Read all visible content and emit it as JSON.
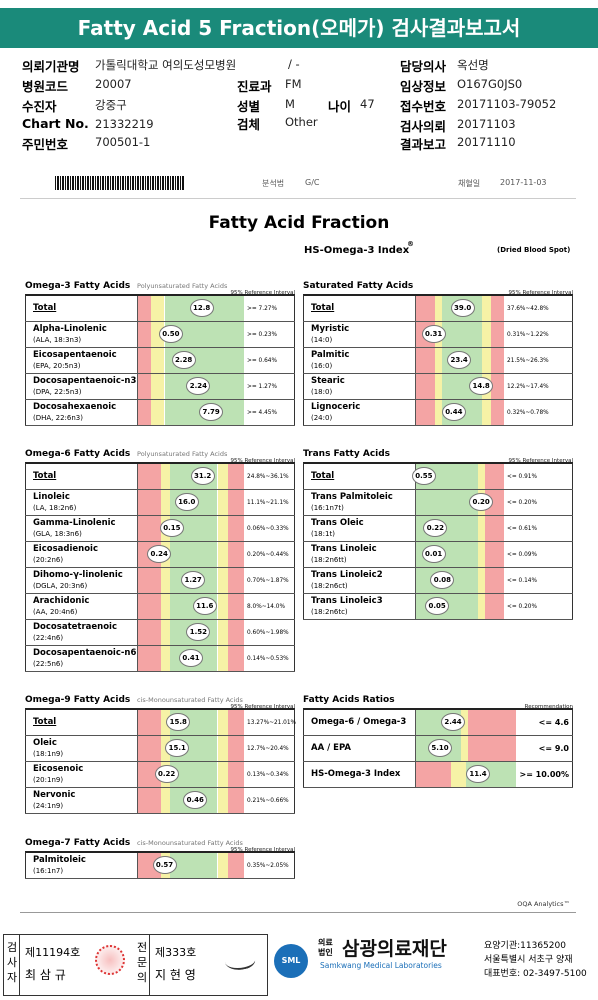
{
  "header": {
    "title": "Fatty Acid 5 Fraction(오메가) 검사결과보고서"
  },
  "patient": [
    {
      "label": "의뢰기관명",
      "value": "가톨릭대학교 여의도성모병원"
    },
    {
      "value": "/ -"
    },
    {
      "label": "담당의사",
      "value": "옥선명"
    },
    {
      "label": "병원코드",
      "value": "20007"
    },
    {
      "label": "진료과",
      "value": "FM"
    },
    {
      "label": "임상정보",
      "value": "O167G0JS0"
    },
    {
      "label": "수진자",
      "value": "강중구"
    },
    {
      "label": "성별",
      "value": "M"
    },
    {
      "label": "나이",
      "value": "47"
    },
    {
      "label": "접수번호",
      "value": "20171103-79052"
    },
    {
      "label": "Chart No.",
      "value": "21332219"
    },
    {
      "label": "검체",
      "value": "Other"
    },
    {
      "label": "검사의뢰",
      "value": "20171103"
    },
    {
      "label": "주민번호",
      "value": "700501-1"
    },
    {
      "label": "결과보고",
      "value": "20171110"
    }
  ],
  "strip": [
    {
      "label": "분석법",
      "value": "G/C"
    },
    {
      "label": "채혈일",
      "value": "2017-11-03"
    }
  ],
  "report": {
    "title": "Fatty Acid Fraction",
    "index_title": "HS-Omega-3 Index",
    "index_mark": "®",
    "specimen": "(Dried Blood Spot)",
    "sections": [
      {
        "name": "Omega-3 Fatty Acids",
        "subtitle": "Polyunsaturated Fatty Acids",
        "ref_header": "95% Reference Interval",
        "rows": [
          {
            "name": "Total",
            "value": "12.8",
            "ref": ">= 7.27%"
          },
          {
            "name": "Alpha-Linolenic",
            "sub": "(ALA, 18:3n3)",
            "value": "0.50",
            "ref": ">= 0.23%"
          },
          {
            "name": "Eicosapentaenoic",
            "sub": "(EPA, 20:5n3)",
            "value": "2.28",
            "ref": ">= 0.64%"
          },
          {
            "name": "Docosapentaenoic-n3",
            "sub": "(DPA, 22:5n3)",
            "value": "2.24",
            "ref": ">= 1.27%"
          },
          {
            "name": "Docosahexaenoic",
            "sub": "(DHA, 22:6n3)",
            "value": "7.79",
            "ref": ">= 4.45%"
          }
        ]
      },
      {
        "name": "Saturated Fatty Acids",
        "ref_header": "95% Reference Interval",
        "rows": [
          {
            "name": "Total",
            "value": "39.0",
            "ref": "37.6%~42.8%"
          },
          {
            "name": "Myristic",
            "sub": "(14:0)",
            "value": "0.31",
            "ref": "0.31%~1.22%"
          },
          {
            "name": "Palmitic",
            "sub": "(16:0)",
            "value": "23.4",
            "ref": "21.5%~26.3%"
          },
          {
            "name": "Stearic",
            "sub": "(18:0)",
            "value": "14.8",
            "ref": "12.2%~17.4%"
          },
          {
            "name": "Lignoceric",
            "sub": "(24:0)",
            "value": "0.44",
            "ref": "0.32%~0.78%"
          }
        ]
      },
      {
        "name": "Omega-6 Fatty Acids",
        "subtitle": "Polyunsaturated Fatty Acids",
        "ref_header": "95% Reference Interval",
        "rows": [
          {
            "name": "Total",
            "value": "31.2",
            "ref": "24.8%~36.1%"
          },
          {
            "name": "Linoleic",
            "sub": "(LA, 18:2n6)",
            "value": "16.0",
            "ref": "11.1%~21.1%"
          },
          {
            "name": "Gamma-Linolenic",
            "sub": "(GLA, 18:3n6)",
            "value": "0.15",
            "ref": "0.06%~0.33%"
          },
          {
            "name": "Eicosadienoic",
            "sub": "(20:2n6)",
            "value": "0.24",
            "ref": "0.20%~0.44%"
          },
          {
            "name": "Dihomo-γ-linolenic",
            "sub": "(DGLA, 20:3n6)",
            "value": "1.27",
            "ref": "0.70%~1.87%"
          },
          {
            "name": "Arachidonic",
            "sub": "(AA, 20:4n6)",
            "value": "11.6",
            "ref": "8.0%~14.0%"
          },
          {
            "name": "Docosatetraenoic",
            "sub": "(22:4n6)",
            "value": "1.52",
            "ref": "0.60%~1.98%"
          },
          {
            "name": "Docosapentaenoic-n6",
            "sub": "(22:5n6)",
            "value": "0.41",
            "ref": "0.14%~0.53%"
          }
        ]
      },
      {
        "name": "Trans Fatty Acids",
        "ref_header": "95% Reference Interval",
        "rows": [
          {
            "name": "Total",
            "value": "0.55",
            "ref": "<= 0.91%"
          },
          {
            "name": "Trans Palmitoleic",
            "sub": "(16:1n7t)",
            "value": "0.20",
            "ref": "<= 0.20%"
          },
          {
            "name": "Trans Oleic",
            "sub": "(18:1t)",
            "value": "0.22",
            "ref": "<= 0.61%"
          },
          {
            "name": "Trans Linoleic",
            "sub": "(18:2n6tt)",
            "value": "0.01",
            "ref": "<= 0.09%"
          },
          {
            "name": "Trans Linoleic2",
            "sub": "(18:2n6ct)",
            "value": "0.08",
            "ref": "<= 0.14%"
          },
          {
            "name": "Trans Linoleic3",
            "sub": "(18:2n6tc)",
            "value": "0.05",
            "ref": "<= 0.20%"
          }
        ]
      },
      {
        "name": "Omega-9 Fatty Acids",
        "subtitle": "cis-Monounsaturated Fatty Acids",
        "ref_header": "95% Reference Interval",
        "rows": [
          {
            "name": "Total",
            "value": "15.8",
            "ref": "13.27%~21.01%"
          },
          {
            "name": "Oleic",
            "sub": "(18:1n9)",
            "value": "15.1",
            "ref": "12.7%~20.4%"
          },
          {
            "name": "Eicosenoic",
            "sub": "(20:1n9)",
            "value": "0.22",
            "ref": "0.13%~0.34%"
          },
          {
            "name": "Nervonic",
            "sub": "(24:1n9)",
            "value": "0.46",
            "ref": "0.21%~0.66%"
          }
        ]
      },
      {
        "name": "Fatty Acids Ratios",
        "ref_header": "Recommendation",
        "rows": [
          {
            "name": "Omega-6 / Omega-3",
            "value": "2.44",
            "ref": "<= 4.6"
          },
          {
            "name": "AA / EPA",
            "value": "5.10",
            "ref": "<= 9.0"
          },
          {
            "name": "HS-Omega-3 Index",
            "value": "11.4",
            "ref": ">= 10.00%"
          }
        ]
      },
      {
        "name": "Omega-7 Fatty Acids",
        "subtitle": "cis-Monounsaturated Fatty Acids",
        "ref_header": "95% Reference Interval",
        "rows": [
          {
            "name": "Palmitoleic",
            "sub": "(16:1n7)",
            "value": "0.57",
            "ref": "0.35%~2.05%"
          }
        ]
      }
    ],
    "footer": "OQA Analytics™"
  },
  "signatures": {
    "examiner": {
      "role": "검사자",
      "license": "제11194호",
      "name": "최 삼 규"
    },
    "specialist": {
      "role": "전문의",
      "license": "제333호",
      "name": "지 현 영"
    },
    "lab": {
      "logo": "SML",
      "corp": "의료법인",
      "name": "삼광의료재단",
      "english": "Samkwang Medical Laboratories",
      "code": "요양기관:11365200",
      "address": "서울특별시 서초구 양재",
      "phone": "대표번호: 02-3497-5100"
    }
  }
}
